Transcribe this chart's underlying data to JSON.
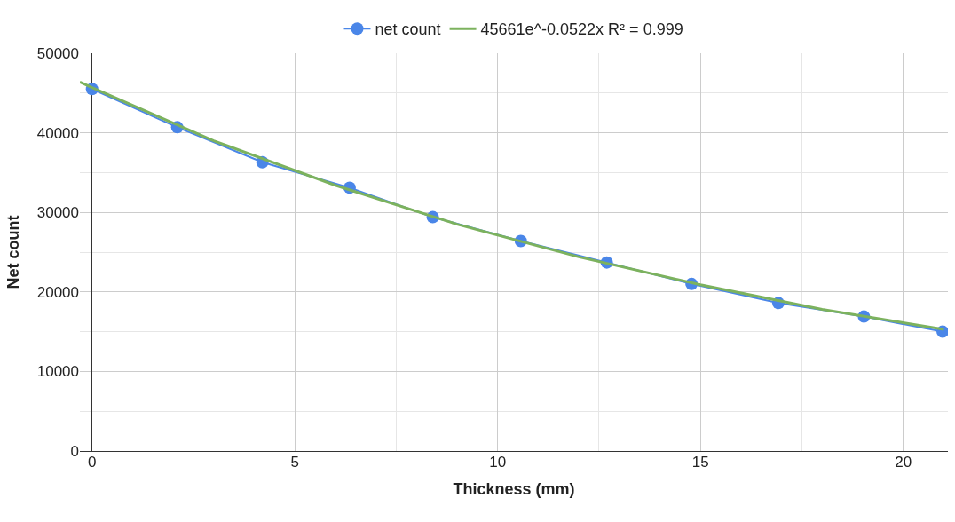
{
  "chart_data": {
    "type": "line",
    "xlabel": "Thickness (mm)",
    "ylabel": "Net count",
    "xlim": [
      -0.3,
      21.1
    ],
    "xticks": [
      0,
      5,
      10,
      15,
      20
    ],
    "ylim": [
      0,
      50000
    ],
    "yticks": [
      0,
      10000,
      20000,
      30000,
      40000,
      50000
    ],
    "grid": true,
    "legend": "top",
    "marker": "circle",
    "line_style": "solid",
    "series": [
      {
        "name": "net count",
        "color": "#4a86e8",
        "x": [
          0,
          2.1,
          4.2,
          6.35,
          8.4,
          10.57,
          12.69,
          14.78,
          16.92,
          19.03,
          20.97
        ],
        "values": [
          45500,
          40700,
          36300,
          33100,
          29400,
          26400,
          23700,
          21000,
          18600,
          16900,
          15000
        ]
      },
      {
        "name": "45661e^-0.0522x R² = 0.999",
        "color": "#7cb25e",
        "marker": "none",
        "x": [
          -0.3,
          0,
          3,
          6,
          9,
          12,
          15,
          18,
          21
        ],
        "values": [
          46400,
          45700,
          39000,
          33400,
          28500,
          24400,
          20900,
          17800,
          15300
        ]
      }
    ]
  }
}
